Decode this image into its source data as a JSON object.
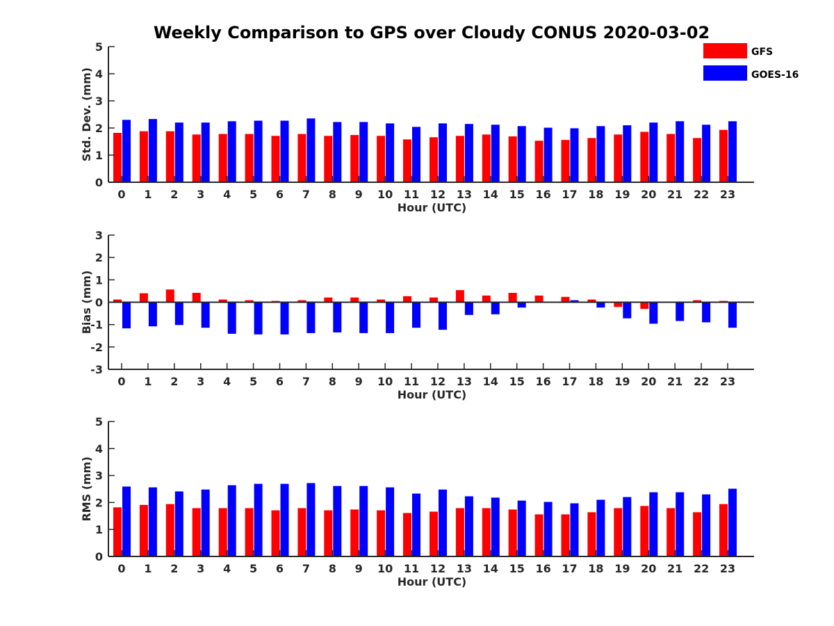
{
  "chart_data": {
    "type": "bar",
    "title": "Weekly Comparison to GPS over Cloudy CONUS 2020-03-02",
    "legend": {
      "placement": "top-right",
      "entries": [
        {
          "name": "GFS",
          "color": "#ff0000"
        },
        {
          "name": "GOES-16",
          "color": "#0000ff"
        }
      ]
    },
    "panels": [
      {
        "xlabel": "Hour (UTC)",
        "ylabel": "Std. Dev. (mm)",
        "ylim": [
          0,
          5
        ],
        "yticks": [
          0,
          1,
          2,
          3,
          4,
          5
        ],
        "categories": [
          "0",
          "1",
          "2",
          "3",
          "4",
          "5",
          "6",
          "7",
          "8",
          "9",
          "10",
          "11",
          "12",
          "13",
          "14",
          "15",
          "16",
          "17",
          "18",
          "19",
          "20",
          "21",
          "22",
          "23"
        ],
        "series": [
          {
            "name": "GFS",
            "color": "#ff0000",
            "values": [
              1.82,
              1.88,
              1.88,
              1.76,
              1.78,
              1.78,
              1.71,
              1.78,
              1.71,
              1.74,
              1.71,
              1.58,
              1.66,
              1.71,
              1.76,
              1.69,
              1.53,
              1.56,
              1.63,
              1.76,
              1.86,
              1.78,
              1.63,
              1.93
            ]
          },
          {
            "name": "GOES-16",
            "color": "#0000ff",
            "values": [
              2.3,
              2.33,
              2.2,
              2.2,
              2.25,
              2.27,
              2.27,
              2.35,
              2.22,
              2.22,
              2.17,
              2.04,
              2.17,
              2.15,
              2.12,
              2.07,
              2.01,
              1.99,
              2.07,
              2.1,
              2.2,
              2.25,
              2.12,
              2.25
            ]
          }
        ]
      },
      {
        "xlabel": "Hour (UTC)",
        "ylabel": "Bias (mm)",
        "ylim": [
          -3,
          3
        ],
        "yticks": [
          -3,
          -2,
          -1,
          0,
          1,
          2,
          3
        ],
        "zero_line": true,
        "categories": [
          "0",
          "1",
          "2",
          "3",
          "4",
          "5",
          "6",
          "7",
          "8",
          "9",
          "10",
          "11",
          "12",
          "13",
          "14",
          "15",
          "16",
          "17",
          "18",
          "19",
          "20",
          "21",
          "22",
          "23"
        ],
        "series": [
          {
            "name": "GFS",
            "color": "#ff0000",
            "values": [
              0.12,
              0.4,
              0.57,
              0.42,
              0.12,
              0.09,
              0.06,
              0.09,
              0.21,
              0.21,
              0.12,
              0.27,
              0.21,
              0.54,
              0.3,
              0.42,
              0.3,
              0.24,
              0.12,
              -0.21,
              -0.3,
              0.03,
              0.09,
              0.06
            ]
          },
          {
            "name": "GOES-16",
            "color": "#0000ff",
            "values": [
              -1.17,
              -1.08,
              -1.02,
              -1.14,
              -1.41,
              -1.44,
              -1.44,
              -1.38,
              -1.35,
              -1.38,
              -1.38,
              -1.14,
              -1.23,
              -0.57,
              -0.54,
              -0.24,
              0.0,
              0.09,
              -0.24,
              -0.72,
              -0.96,
              -0.84,
              -0.9,
              -1.14
            ]
          }
        ]
      },
      {
        "xlabel": "Hour (UTC)",
        "ylabel": "RMS (mm)",
        "ylim": [
          0,
          5
        ],
        "yticks": [
          0,
          1,
          2,
          3,
          4,
          5
        ],
        "categories": [
          "0",
          "1",
          "2",
          "3",
          "4",
          "5",
          "6",
          "7",
          "8",
          "9",
          "10",
          "11",
          "12",
          "13",
          "14",
          "15",
          "16",
          "17",
          "18",
          "19",
          "20",
          "21",
          "22",
          "23"
        ],
        "series": [
          {
            "name": "GFS",
            "color": "#ff0000",
            "values": [
              1.82,
              1.91,
              1.94,
              1.79,
              1.79,
              1.79,
              1.71,
              1.79,
              1.71,
              1.74,
              1.71,
              1.61,
              1.66,
              1.79,
              1.79,
              1.74,
              1.56,
              1.56,
              1.64,
              1.79,
              1.87,
              1.79,
              1.64,
              1.94
            ]
          },
          {
            "name": "GOES-16",
            "color": "#0000ff",
            "values": [
              2.59,
              2.56,
              2.41,
              2.48,
              2.64,
              2.69,
              2.69,
              2.72,
              2.61,
              2.61,
              2.56,
              2.33,
              2.48,
              2.23,
              2.18,
              2.07,
              2.02,
              1.97,
              2.1,
              2.2,
              2.38,
              2.38,
              2.3,
              2.51
            ]
          }
        ]
      }
    ]
  }
}
